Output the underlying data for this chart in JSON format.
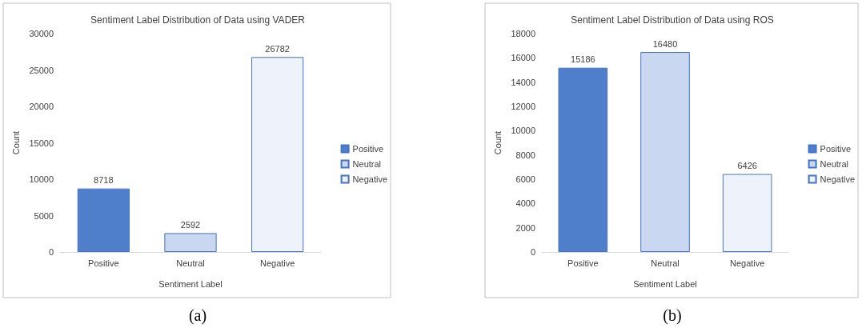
{
  "chart_data": [
    {
      "type": "bar",
      "title": "Sentiment Label Distribution of Data using VADER",
      "xlabel": "Sentiment Label",
      "ylabel": "Count",
      "categories": [
        "Positive",
        "Neutral",
        "Negative"
      ],
      "series": [
        {
          "name": "Positive",
          "color": "#4f7fcb",
          "values": [
            8718,
            null,
            null
          ]
        },
        {
          "name": "Neutral",
          "color": "#c9d8f0",
          "values": [
            null,
            2592,
            null
          ]
        },
        {
          "name": "Negative",
          "color": "#eef3fb",
          "values": [
            null,
            null,
            26782
          ]
        }
      ],
      "ylim": [
        0,
        30000
      ],
      "yticks": [
        0,
        5000,
        10000,
        15000,
        20000,
        25000,
        30000
      ],
      "data_labels": true,
      "legend": "right",
      "grid": false,
      "annotations": [
        "(a)"
      ]
    },
    {
      "type": "bar",
      "title": "Sentiment Label Distribution of Data using ROS",
      "xlabel": "Sentiment Label",
      "ylabel": "Count",
      "categories": [
        "Positive",
        "Neutral",
        "Negative"
      ],
      "series": [
        {
          "name": "Positive",
          "color": "#4f7fcb",
          "values": [
            15186,
            null,
            null
          ]
        },
        {
          "name": "Neutral",
          "color": "#c9d8f0",
          "values": [
            null,
            16480,
            null
          ]
        },
        {
          "name": "Negative",
          "color": "#eef3fb",
          "values": [
            null,
            null,
            6426
          ]
        }
      ],
      "ylim": [
        0,
        18000
      ],
      "yticks": [
        0,
        2000,
        4000,
        6000,
        8000,
        10000,
        12000,
        14000,
        16000,
        18000
      ],
      "data_labels": true,
      "legend": "right",
      "grid": false,
      "annotations": [
        "(b)"
      ]
    }
  ]
}
